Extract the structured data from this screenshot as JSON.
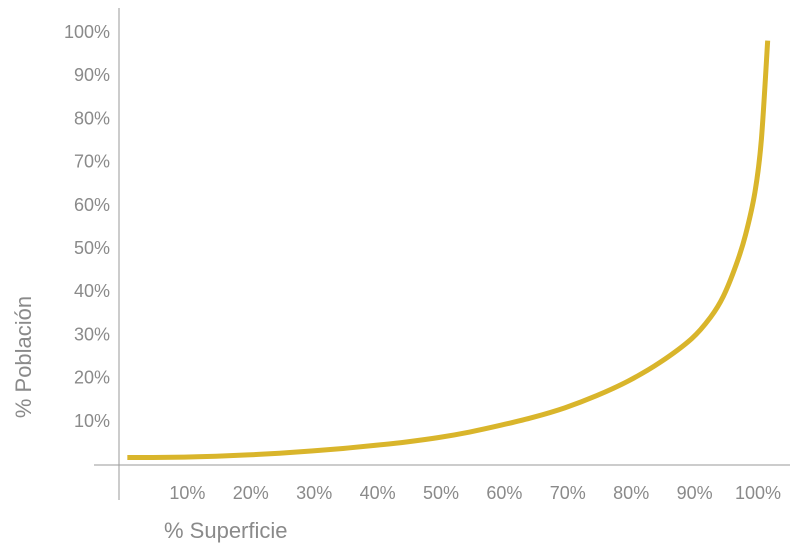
{
  "chart_data": {
    "type": "line",
    "title": "",
    "xlabel": "% Superficie",
    "ylabel": "% Población",
    "xlim": [
      0,
      105
    ],
    "ylim": [
      0,
      103
    ],
    "grid": false,
    "x_ticks": [
      10,
      20,
      30,
      40,
      50,
      60,
      70,
      80,
      90,
      100
    ],
    "x_tick_labels": [
      "10%",
      "20%",
      "30%",
      "40%",
      "50%",
      "60%",
      "70%",
      "80%",
      "90%",
      "100%"
    ],
    "y_ticks": [
      10,
      20,
      30,
      40,
      50,
      60,
      70,
      80,
      90,
      100
    ],
    "y_tick_labels": [
      "10%",
      "20%",
      "30%",
      "40%",
      "50%",
      "60%",
      "70%",
      "80%",
      "90%",
      "100%"
    ],
    "series": [
      {
        "color": "#d9b52b",
        "x": [
          1,
          5,
          10,
          15,
          20,
          25,
          30,
          35,
          40,
          45,
          50,
          55,
          60,
          65,
          70,
          75,
          80,
          85,
          90,
          93,
          95,
          97,
          98.5,
          100,
          101,
          102
        ],
        "y": [
          1.5,
          1.5,
          1.6,
          1.8,
          2.1,
          2.5,
          3.0,
          3.6,
          4.3,
          5.1,
          6.1,
          7.4,
          9.0,
          10.8,
          13.0,
          15.8,
          19.2,
          23.5,
          29.0,
          34.0,
          38.8,
          46.0,
          53.0,
          63.0,
          75.0,
          98.0
        ]
      }
    ]
  }
}
